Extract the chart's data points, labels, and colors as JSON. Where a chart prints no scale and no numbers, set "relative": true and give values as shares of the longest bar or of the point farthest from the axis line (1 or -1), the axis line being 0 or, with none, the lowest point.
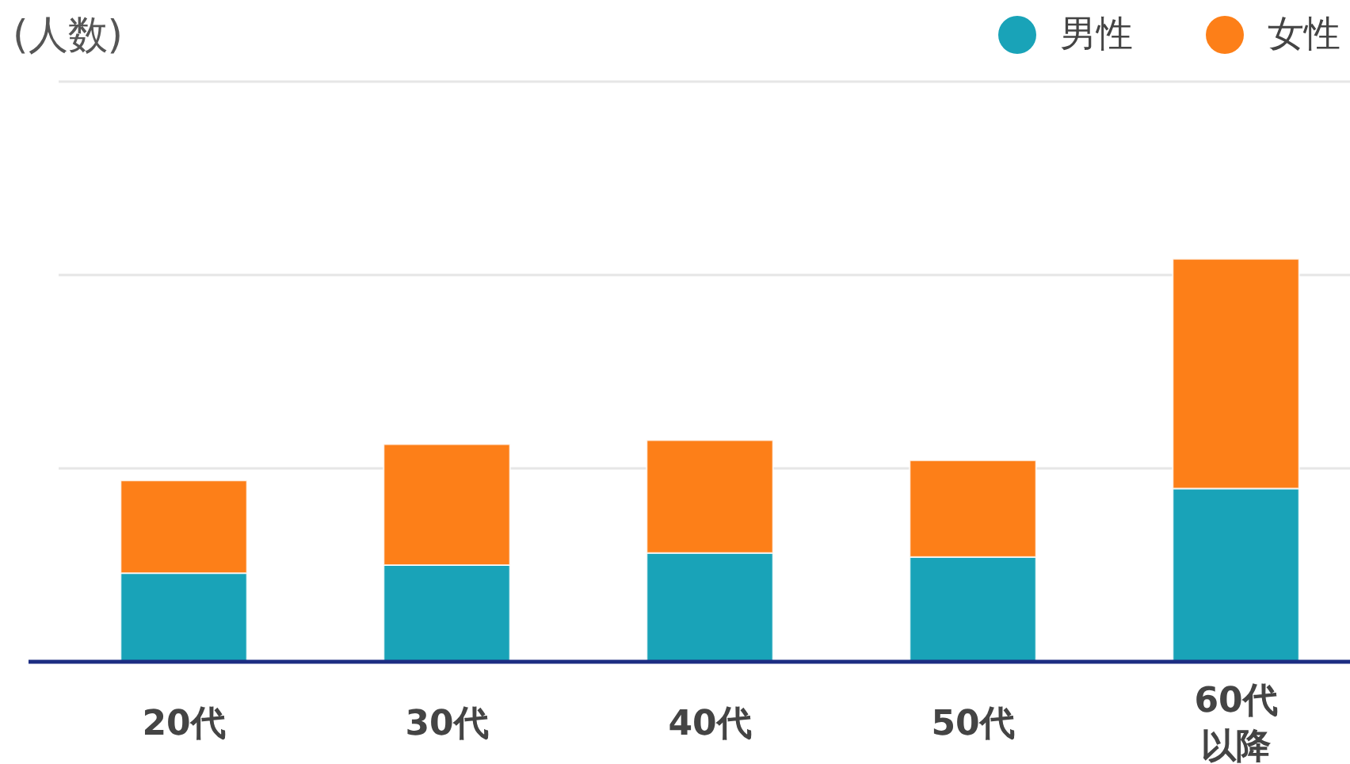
{
  "chart_data": {
    "type": "bar",
    "annotations": [
      "(人数)"
    ],
    "categories": [
      "20代",
      "30代",
      "40代",
      "50代",
      "60代以降"
    ],
    "stacked": true,
    "relative": true,
    "legend": "top right",
    "ref_lines": [
      {
        "axis": "y",
        "value": 0.48,
        "color": "#e6e6e6"
      },
      {
        "axis": "y",
        "value": 0.96,
        "color": "#e6e6e6"
      },
      {
        "axis": "y",
        "value": 1.44,
        "color": "#e6e6e6"
      }
    ],
    "series": [
      {
        "name": "男性",
        "color": "#19a3b8",
        "values": [
          0.22,
          0.24,
          0.27,
          0.26,
          0.43
        ]
      },
      {
        "name": "女性",
        "color": "#fd7f18",
        "values": [
          0.23,
          0.3,
          0.28,
          0.24,
          0.57
        ]
      }
    ]
  }
}
